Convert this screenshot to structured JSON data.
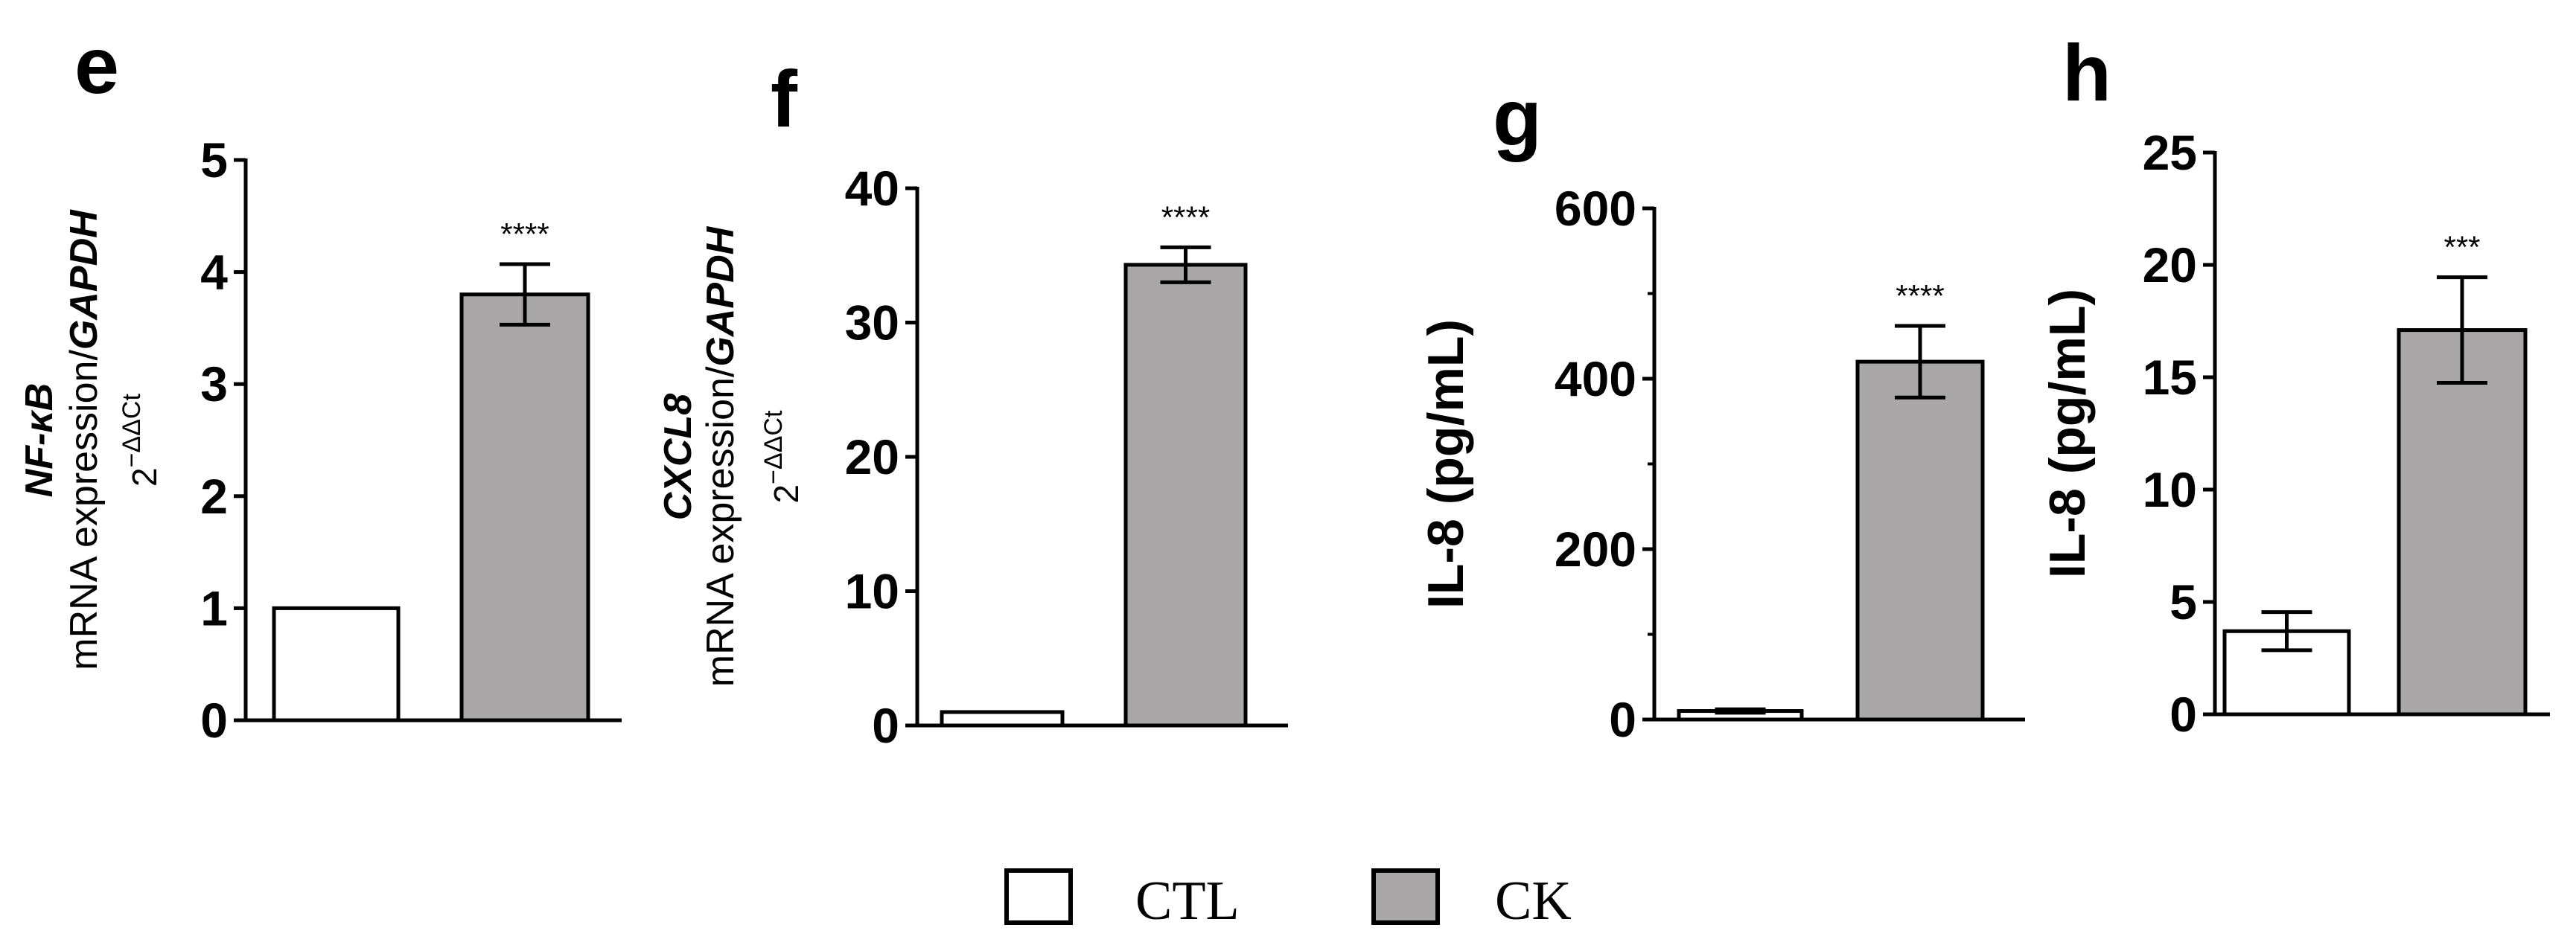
{
  "colors": {
    "CTL": "#ffffff",
    "CK": "#a8a6a7",
    "stroke": "#000000"
  },
  "legend": [
    {
      "label": "CTL",
      "color": "#ffffff"
    },
    {
      "label": "CK",
      "color": "#a8a6a7"
    }
  ],
  "chart_data": [
    {
      "type": "bar",
      "panel": "e",
      "categories": [
        "CTL",
        "CK"
      ],
      "values": [
        1.0,
        3.8
      ],
      "errors": [
        0,
        0.27
      ],
      "significance": [
        "",
        "****"
      ],
      "ylim": [
        0,
        5
      ],
      "yticks": [
        "0",
        "1",
        "2",
        "3",
        "4",
        "5"
      ],
      "ylabel_lines": [
        "NF-κB",
        "mRNA expression/GAPDH",
        "2−ΔΔCt"
      ]
    },
    {
      "type": "bar",
      "panel": "f",
      "categories": [
        "CTL",
        "CK"
      ],
      "values": [
        1.0,
        34.3
      ],
      "errors": [
        0,
        1.3
      ],
      "significance": [
        "",
        "****"
      ],
      "ylim": [
        0,
        40
      ],
      "yticks": [
        "0",
        "10",
        "20",
        "30",
        "40"
      ],
      "ylabel_lines": [
        "CXCL8",
        "mRNA expression/GAPDH",
        "2−ΔΔCt"
      ]
    },
    {
      "type": "bar",
      "panel": "g",
      "categories": [
        "CTL",
        "CK"
      ],
      "values": [
        10,
        420
      ],
      "errors": [
        2,
        42
      ],
      "significance": [
        "",
        "****"
      ],
      "ylim": [
        0,
        600
      ],
      "yticks": [
        "0",
        "200",
        "400",
        "600"
      ],
      "ylabel_lines": [
        "IL-8 (pg/mL)"
      ]
    },
    {
      "type": "bar",
      "panel": "h",
      "categories": [
        "CTL",
        "CK"
      ],
      "values": [
        3.7,
        17.1
      ],
      "errors": [
        0.85,
        2.35
      ],
      "significance": [
        "",
        "***"
      ],
      "ylim": [
        0,
        25
      ],
      "yticks": [
        "0",
        "5",
        "10",
        "15",
        "20",
        "25"
      ],
      "ylabel_lines": [
        "IL-8 (pg/mL)"
      ]
    }
  ]
}
